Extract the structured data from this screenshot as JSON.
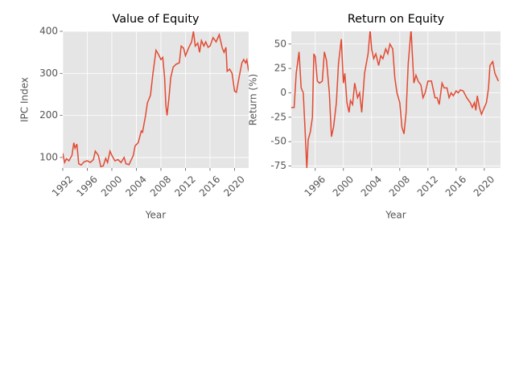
{
  "chart_data": [
    {
      "type": "line",
      "title": "Value of Equity",
      "xlabel": "Year",
      "ylabel": "IPC Index",
      "color": "#e24a33",
      "grid": true,
      "xlim": [
        1992,
        2022.3
      ],
      "ylim": [
        75,
        400
      ],
      "xticks": [
        1992,
        1996,
        2000,
        2004,
        2008,
        2012,
        2016,
        2020
      ],
      "yticks": [
        100,
        200,
        300,
        400
      ],
      "x": [
        1992.0,
        1992.3,
        1992.6,
        1993.0,
        1993.5,
        1993.8,
        1994.0,
        1994.3,
        1994.6,
        1995.0,
        1995.5,
        1996.0,
        1996.5,
        1997.0,
        1997.3,
        1997.8,
        1998.2,
        1998.6,
        1999.0,
        1999.3,
        1999.7,
        2000.0,
        2000.5,
        2001.0,
        2001.5,
        2002.0,
        2002.3,
        2002.8,
        2003.5,
        2003.8,
        2004.3,
        2004.8,
        2005.0,
        2005.5,
        2005.8,
        2006.3,
        2006.7,
        2007.2,
        2007.6,
        2008.0,
        2008.3,
        2008.6,
        2008.8,
        2009.0,
        2009.3,
        2009.6,
        2010.0,
        2010.5,
        2011.0,
        2011.3,
        2011.7,
        2012.0,
        2012.5,
        2013.0,
        2013.3,
        2013.6,
        2014.0,
        2014.3,
        2014.6,
        2015.0,
        2015.3,
        2015.7,
        2016.0,
        2016.5,
        2017.0,
        2017.5,
        2018.0,
        2018.3,
        2018.6,
        2018.8,
        2019.2,
        2019.6,
        2020.0,
        2020.3,
        2020.8,
        2021.2,
        2021.5,
        2021.8,
        2022.0,
        2022.3
      ],
      "values": [
        110,
        88,
        97,
        92,
        105,
        135,
        122,
        132,
        85,
        82,
        90,
        92,
        88,
        95,
        115,
        105,
        78,
        80,
        98,
        88,
        115,
        105,
        92,
        95,
        88,
        100,
        85,
        83,
        105,
        128,
        135,
        163,
        160,
        200,
        230,
        248,
        300,
        355,
        345,
        333,
        338,
        290,
        225,
        200,
        240,
        290,
        315,
        322,
        325,
        365,
        360,
        342,
        360,
        375,
        400,
        365,
        372,
        350,
        378,
        365,
        375,
        362,
        365,
        385,
        375,
        392,
        360,
        350,
        362,
        305,
        310,
        300,
        258,
        255,
        295,
        325,
        333,
        325,
        332,
        305
      ]
    },
    {
      "type": "line",
      "title": "Return on Equity",
      "xlabel": "Year",
      "ylabel": "Return (%)",
      "color": "#e24a33",
      "grid": true,
      "xlim": [
        1992.6,
        2022.3
      ],
      "ylim": [
        -77,
        63
      ],
      "xticks": [
        1996,
        2000,
        2004,
        2008,
        2012,
        2016,
        2020
      ],
      "yticks": [
        -75,
        -50,
        -25,
        0,
        25,
        50
      ],
      "x": [
        1992.6,
        1993.0,
        1993.3,
        1993.7,
        1994.0,
        1994.3,
        1994.6,
        1994.8,
        1995.0,
        1995.3,
        1995.6,
        1995.8,
        1996.0,
        1996.3,
        1996.6,
        1997.0,
        1997.3,
        1997.6,
        1998.0,
        1998.3,
        1998.6,
        1999.0,
        1999.3,
        1999.7,
        2000.0,
        2000.2,
        2000.5,
        2000.8,
        2001.0,
        2001.3,
        2001.6,
        2002.0,
        2002.3,
        2002.6,
        2003.0,
        2003.5,
        2003.8,
        2004.0,
        2004.3,
        2004.6,
        2005.0,
        2005.3,
        2005.6,
        2006.0,
        2006.3,
        2006.6,
        2007.0,
        2007.3,
        2007.6,
        2008.0,
        2008.3,
        2008.6,
        2008.9,
        2009.2,
        2009.6,
        2010.0,
        2010.3,
        2010.6,
        2011.0,
        2011.3,
        2011.6,
        2012.0,
        2012.5,
        2013.0,
        2013.3,
        2013.6,
        2014.0,
        2014.3,
        2014.7,
        2015.0,
        2015.3,
        2015.6,
        2016.0,
        2016.3,
        2016.6,
        2017.0,
        2017.5,
        2018.0,
        2018.3,
        2018.6,
        2018.8,
        2019.0,
        2019.3,
        2019.6,
        2020.0,
        2020.3,
        2020.6,
        2020.8,
        2021.2,
        2021.5,
        2022.0
      ],
      "values": [
        -15,
        -15,
        20,
        42,
        5,
        0,
        -45,
        -78,
        -48,
        -40,
        -25,
        40,
        37,
        12,
        10,
        12,
        42,
        33,
        0,
        -45,
        -35,
        -10,
        30,
        55,
        10,
        20,
        -10,
        -20,
        -8,
        -12,
        10,
        -5,
        0,
        -20,
        20,
        40,
        65,
        45,
        35,
        40,
        28,
        38,
        35,
        45,
        40,
        50,
        45,
        15,
        0,
        -10,
        -35,
        -42,
        -20,
        30,
        65,
        10,
        18,
        12,
        8,
        -5,
        0,
        12,
        12,
        -5,
        -5,
        -12,
        10,
        5,
        5,
        -5,
        0,
        -3,
        2,
        0,
        3,
        2,
        -5,
        -10,
        -15,
        -10,
        -18,
        -3,
        -15,
        -22,
        -15,
        -10,
        5,
        28,
        32,
        20,
        12
      ]
    }
  ]
}
